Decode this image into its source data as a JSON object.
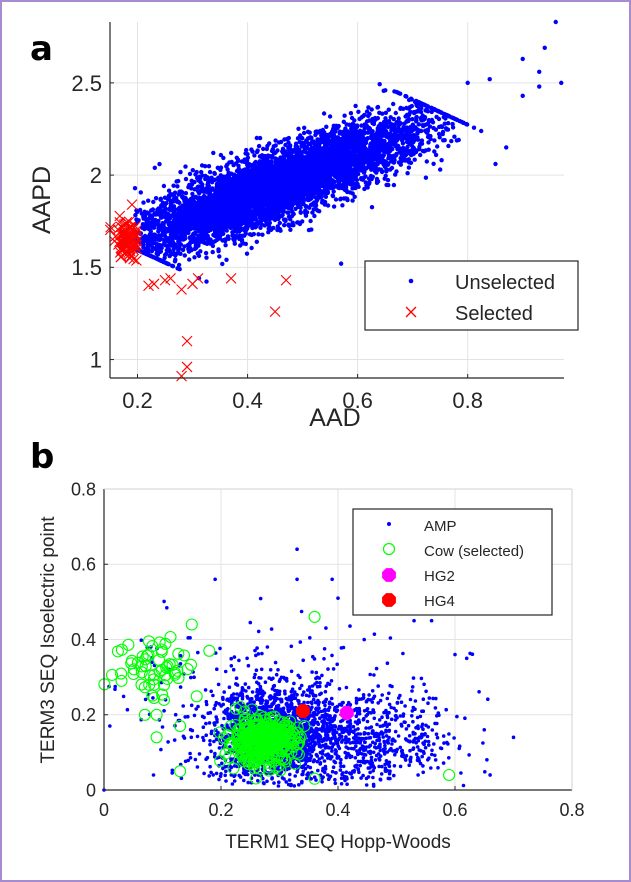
{
  "chart_data": [
    {
      "panel_label": "a",
      "type": "scatter",
      "xlabel": "AAD",
      "ylabel": "AAPD",
      "xlim": [
        0.15,
        0.975
      ],
      "ylim": [
        0.9,
        2.83
      ],
      "xticks": [
        "0.2",
        "0.4",
        "0.6",
        "0.8"
      ],
      "xtick_values": [
        0.2,
        0.4,
        0.6,
        0.8
      ],
      "yticks": [
        "1",
        "1.5",
        "2",
        "2.5"
      ],
      "ytick_values": [
        1,
        1.5,
        2,
        2.5
      ],
      "grid": true,
      "legend": {
        "placement": "bottom-right",
        "entries": [
          "Unselected",
          "Selected"
        ]
      },
      "series": [
        {
          "name": "Unselected",
          "color": "#0000ff",
          "marker": "dot",
          "cluster": {
            "from": [
              0.22,
              1.63
            ],
            "to": [
              0.68,
              2.25
            ],
            "count": 6000
          },
          "outliers": [
            [
              0.96,
              2.83
            ],
            [
              0.94,
              2.69
            ],
            [
              0.93,
              2.56
            ],
            [
              0.93,
              2.48
            ],
            [
              0.97,
              2.5
            ],
            [
              0.9,
              2.63
            ],
            [
              0.9,
              2.43
            ],
            [
              0.87,
              2.15
            ],
            [
              0.84,
              2.52
            ],
            [
              0.8,
              2.5
            ],
            [
              0.75,
              2.03
            ],
            [
              0.57,
              1.52
            ],
            [
              0.24,
              2.06
            ]
          ]
        },
        {
          "name": "Selected",
          "color": "#ff0000",
          "marker": "x",
          "cluster": {
            "center": [
              0.18,
              1.65
            ],
            "count": 90
          },
          "outliers": [
            [
              0.19,
              1.84
            ],
            [
              0.22,
              1.4
            ],
            [
              0.23,
              1.41
            ],
            [
              0.25,
              1.43
            ],
            [
              0.26,
              1.44
            ],
            [
              0.28,
              1.38
            ],
            [
              0.3,
              1.41
            ],
            [
              0.31,
              1.44
            ],
            [
              0.37,
              1.44
            ],
            [
              0.47,
              1.43
            ],
            [
              0.45,
              1.26
            ],
            [
              0.29,
              1.1
            ],
            [
              0.29,
              0.96
            ],
            [
              0.28,
              0.91
            ]
          ]
        }
      ]
    },
    {
      "panel_label": "b",
      "type": "scatter",
      "xlabel": "TERM1 SEQ Hopp-Woods",
      "ylabel": "TERM3 SEQ Isoelectric point",
      "xlim": [
        0,
        0.8
      ],
      "ylim": [
        0,
        0.8
      ],
      "xticks": [
        "0",
        "0.2",
        "0.4",
        "0.6",
        "0.8"
      ],
      "xtick_values": [
        0,
        0.2,
        0.4,
        0.6,
        0.8
      ],
      "yticks": [
        "0",
        "0.2",
        "0.4",
        "0.6",
        "0.8"
      ],
      "ytick_values": [
        0,
        0.2,
        0.4,
        0.6,
        0.8
      ],
      "grid": true,
      "legend": {
        "placement": "top-right",
        "entries": [
          "AMP",
          "Cow (selected)",
          "HG2",
          "HG4"
        ]
      },
      "series": [
        {
          "name": "AMP",
          "color": "#0000ff",
          "marker": "dot",
          "cluster": {
            "center": [
              0.29,
              0.15
            ],
            "count": 2500
          },
          "outliers": [
            [
              0.0,
              0.0
            ],
            [
              0.33,
              0.64
            ],
            [
              0.19,
              0.56
            ],
            [
              0.33,
              0.56
            ],
            [
              0.39,
              0.56
            ],
            [
              0.4,
              0.51
            ],
            [
              0.65,
              0.16
            ],
            [
              0.7,
              0.14
            ],
            [
              0.66,
              0.04
            ],
            [
              0.62,
              0.35
            ],
            [
              0.6,
              0.36
            ],
            [
              0.01,
              0.17
            ],
            [
              0.56,
              0.45
            ],
            [
              0.53,
              0.45
            ]
          ]
        },
        {
          "name": "Cow (selected)",
          "color": "#00ff00",
          "marker": "open-circle",
          "cluster": {
            "center": [
              0.27,
              0.13
            ],
            "count": 350
          },
          "outliers": [
            [
              0.36,
              0.46
            ],
            [
              0.59,
              0.04
            ],
            [
              0.15,
              0.44
            ],
            [
              0.03,
              0.29
            ],
            [
              0.07,
              0.2
            ],
            [
              0.09,
              0.2
            ],
            [
              0.09,
              0.14
            ],
            [
              0.13,
              0.17
            ],
            [
              0.13,
              0.05
            ],
            [
              0.36,
              0.03
            ],
            [
              0.18,
              0.37
            ]
          ]
        },
        {
          "name": "HG2",
          "color": "#ff00ff",
          "marker": "filled-octagon",
          "points": [
            [
              0.415,
              0.205
            ]
          ]
        },
        {
          "name": "HG4",
          "color": "#ff0000",
          "marker": "filled-octagon",
          "points": [
            [
              0.34,
              0.21
            ]
          ]
        }
      ]
    }
  ]
}
